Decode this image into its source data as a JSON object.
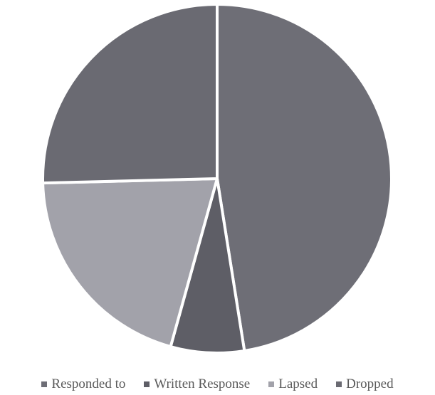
{
  "chart_data": {
    "type": "pie",
    "categories": [
      "Responded to",
      "Written Response",
      "Lapsed",
      "Dropped"
    ],
    "values": [
      47.5,
      6.8,
      20.3,
      25.4
    ],
    "colors": [
      "#6e6e76",
      "#5e5e66",
      "#a2a2aa",
      "#6a6a72"
    ],
    "legend_position": "bottom",
    "start_angle": "12 o'clock, clockwise"
  },
  "legend": {
    "items": [
      {
        "label": "Responded to",
        "color": "#6e6e76"
      },
      {
        "label": "Written Response",
        "color": "#5e5e66"
      },
      {
        "label": "Lapsed",
        "color": "#a2a2aa"
      },
      {
        "label": "Dropped",
        "color": "#6a6a72"
      }
    ]
  }
}
